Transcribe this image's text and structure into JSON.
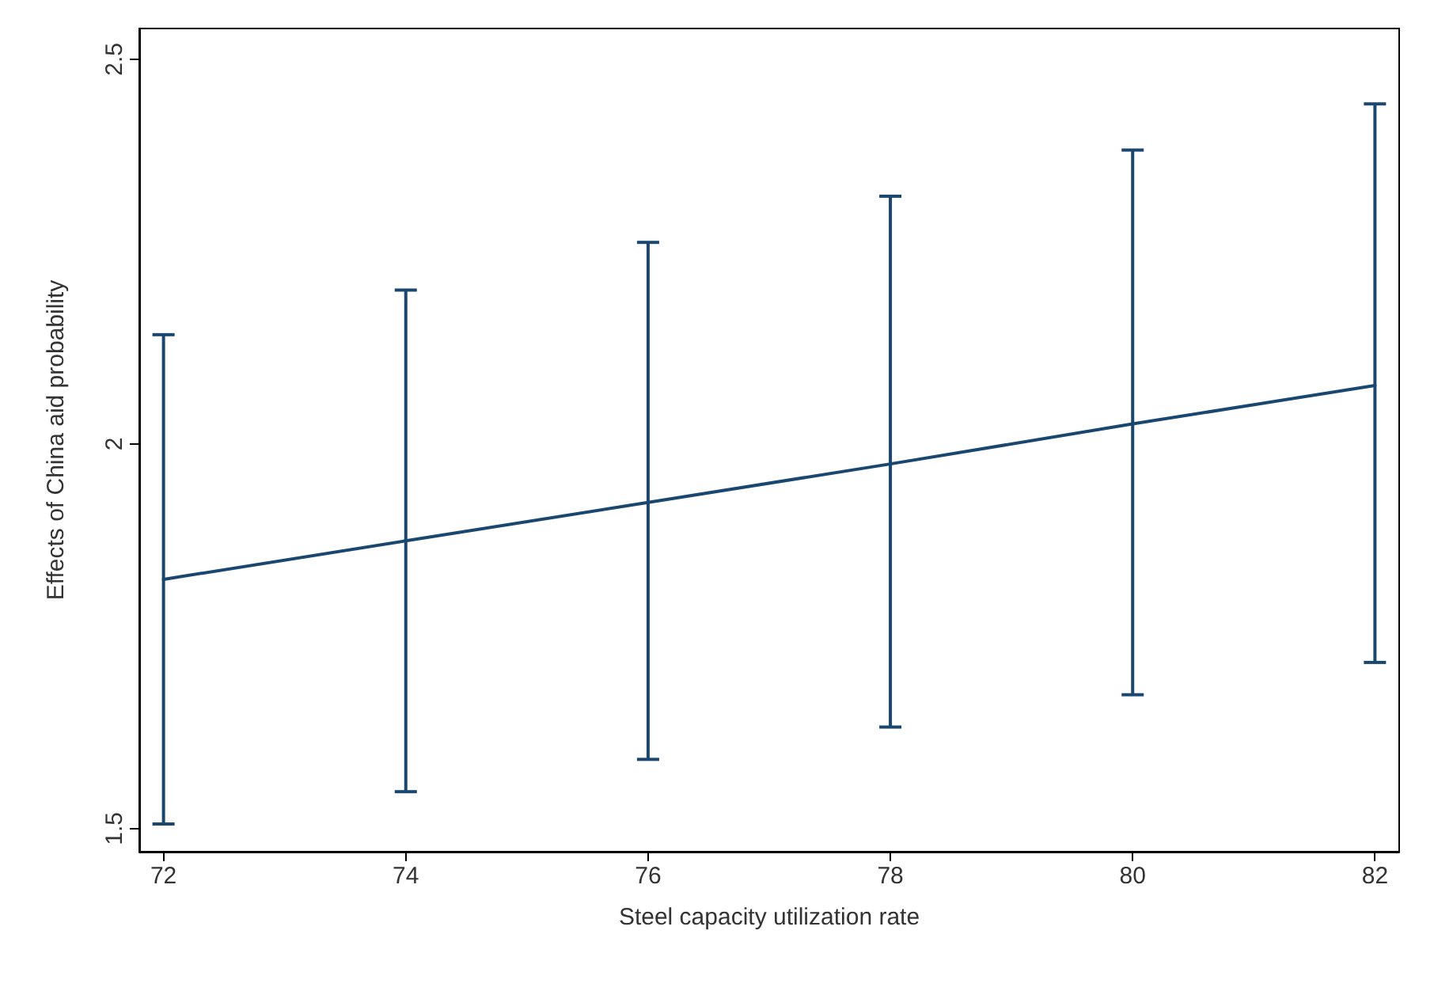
{
  "chart_data": {
    "type": "line",
    "xlabel": "Steel capacity utilization rate",
    "ylabel": "Effects of China aid probability",
    "x": [
      72,
      74,
      76,
      78,
      80,
      82
    ],
    "series": [
      {
        "color": "#1a476f",
        "values": [
          1.824,
          1.874,
          1.924,
          1.974,
          2.026,
          2.076
        ],
        "errors": [
          [
            1.506,
            2.142
          ],
          [
            1.548,
            2.2
          ],
          [
            1.59,
            2.262
          ],
          [
            1.632,
            2.322
          ],
          [
            1.674,
            2.382
          ],
          [
            1.716,
            2.442
          ]
        ]
      }
    ],
    "xlim": [
      71.8,
      82.2
    ],
    "xticks": [
      72,
      74,
      76,
      78,
      80,
      82
    ],
    "ylim": [
      1.47,
      2.54
    ],
    "yticks": [
      1.5,
      2,
      2.5
    ],
    "grid": false,
    "marker": "none",
    "line_style": "solid"
  }
}
